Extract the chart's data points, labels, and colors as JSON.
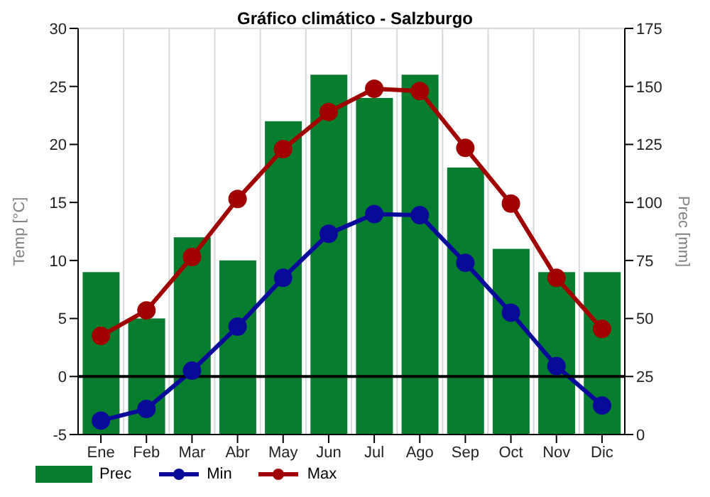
{
  "chart_data": {
    "type": "bar",
    "title": "Gráfico climático - Salzburgo",
    "ylabel": "Temp [°C]",
    "y2label": "Prec [mm]",
    "categories": [
      "Ene",
      "Feb",
      "Mar",
      "Abr",
      "May",
      "Jun",
      "Jul",
      "Ago",
      "Sep",
      "Oct",
      "Nov",
      "Dic"
    ],
    "series": [
      {
        "name": "Prec",
        "axis": "y2",
        "color": "#077d30",
        "values": [
          70,
          50,
          85,
          75,
          135,
          155,
          145,
          155,
          115,
          80,
          70,
          70
        ]
      },
      {
        "name": "Min",
        "type": "line",
        "color": "#0a0a9a",
        "values": [
          -3.8,
          -2.8,
          0.5,
          4.3,
          8.5,
          12.3,
          14,
          13.9,
          9.8,
          5.5,
          0.9,
          -2.5
        ]
      },
      {
        "name": "Max",
        "type": "line",
        "color": "#a00000",
        "values": [
          3.5,
          5.7,
          10.3,
          15.3,
          19.6,
          22.8,
          24.8,
          24.6,
          19.7,
          14.9,
          8.5,
          4.1
        ]
      }
    ],
    "ylim": [
      -5,
      30
    ],
    "yticks": [
      -5,
      0,
      5,
      10,
      15,
      20,
      25,
      30
    ],
    "y2lim": [
      0,
      175
    ],
    "y2ticks": [
      0,
      25,
      50,
      75,
      100,
      125,
      150,
      175
    ],
    "ref_lines": [
      {
        "axis": "y",
        "value": 0,
        "color": "#000000"
      }
    ],
    "grid": true,
    "legend": "bottom",
    "marker": "circle"
  }
}
